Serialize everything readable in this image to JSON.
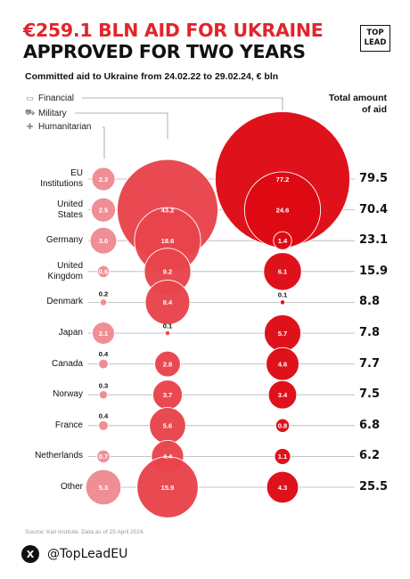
{
  "header": {
    "title_line1": "€259.1 BLN AID FOR UKRAINE",
    "title_line2": "APPROVED FOR TWO YEARS",
    "logo_line1": "TOP",
    "logo_line2": "LEAD",
    "subtitle": "Committed aid to Ukraine from 24.02.22 to 29.02.24, € bln"
  },
  "legend": {
    "financial": "Financial",
    "military": "Military",
    "humanitarian": "Humanitarian",
    "total_line1": "Total amount",
    "total_line2": "of aid"
  },
  "footer": {
    "source": "Source: Kiel Institute.  Data as of 25 April 2024.",
    "handle": "@TopLeadEU",
    "x_glyph": "X"
  },
  "colors": {
    "humanitarian": "#ee8a92",
    "military": "#e8444c",
    "financial": "#de0a14"
  },
  "chart_data": {
    "type": "bubble",
    "series_order": [
      "Humanitarian",
      "Military",
      "Financial"
    ],
    "rows": [
      {
        "country": "EU Institutions",
        "label_lines": [
          "EU",
          "Institutions"
        ],
        "humanitarian": 2.3,
        "military": null,
        "financial": 77.2,
        "total": 79.5,
        "total_label": "79.5",
        "hum_label": "2.3",
        "mil_label": "",
        "fin_label": "77.2"
      },
      {
        "country": "United States",
        "label_lines": [
          "United",
          "States"
        ],
        "humanitarian": 2.5,
        "military": 43.2,
        "financial": 24.6,
        "total": 70.4,
        "total_label": "70.4",
        "hum_label": "2.5",
        "mil_label": "43.2",
        "fin_label": "24.6"
      },
      {
        "country": "Germany",
        "label_lines": [
          "Germany"
        ],
        "humanitarian": 3.0,
        "military": 18.6,
        "financial": 1.4,
        "total": 23.1,
        "total_label": "23.1",
        "hum_label": "3.0",
        "mil_label": "18.6",
        "fin_label": "1.4"
      },
      {
        "country": "United Kingdom",
        "label_lines": [
          "United",
          "Kingdom"
        ],
        "humanitarian": 0.6,
        "military": 9.2,
        "financial": 6.1,
        "total": 15.9,
        "total_label": "15.9",
        "hum_label": "0.6",
        "mil_label": "9.2",
        "fin_label": "6.1"
      },
      {
        "country": "Denmark",
        "label_lines": [
          "Denmark"
        ],
        "humanitarian": 0.2,
        "military": 8.4,
        "financial": 0.1,
        "total": 8.8,
        "total_label": "8.8",
        "hum_label": "0.2",
        "mil_label": "8.4",
        "fin_label": "0.1"
      },
      {
        "country": "Japan",
        "label_lines": [
          "Japan"
        ],
        "humanitarian": 2.1,
        "military": 0.1,
        "financial": 5.7,
        "total": 7.8,
        "total_label": "7.8",
        "hum_label": "2.1",
        "mil_label": "0.1",
        "fin_label": "5.7"
      },
      {
        "country": "Canada",
        "label_lines": [
          "Canada"
        ],
        "humanitarian": 0.4,
        "military": 2.8,
        "financial": 4.6,
        "total": 7.7,
        "total_label": "7.7",
        "hum_label": "0.4",
        "mil_label": "2.8",
        "fin_label": "4.6"
      },
      {
        "country": "Norway",
        "label_lines": [
          "Norway"
        ],
        "humanitarian": 0.3,
        "military": 3.7,
        "financial": 3.4,
        "total": 7.5,
        "total_label": "7.5",
        "hum_label": "0.3",
        "mil_label": "3.7",
        "fin_label": "3.4"
      },
      {
        "country": "France",
        "label_lines": [
          "France"
        ],
        "humanitarian": 0.4,
        "military": 5.6,
        "financial": 0.8,
        "total": 6.8,
        "total_label": "6.8",
        "hum_label": "0.4",
        "mil_label": "5.6",
        "fin_label": "0.8"
      },
      {
        "country": "Netherlands",
        "label_lines": [
          "Netherlands"
        ],
        "humanitarian": 0.7,
        "military": 4.4,
        "financial": 1.1,
        "total": 6.2,
        "total_label": "6.2",
        "hum_label": "0.7",
        "mil_label": "4.4",
        "fin_label": "1.1"
      },
      {
        "country": "Other",
        "label_lines": [
          "Other"
        ],
        "humanitarian": 5.3,
        "military": 15.9,
        "financial": 4.3,
        "total": 25.5,
        "total_label": "25.5",
        "hum_label": "5.3",
        "mil_label": "15.9",
        "fin_label": "4.3"
      }
    ]
  }
}
